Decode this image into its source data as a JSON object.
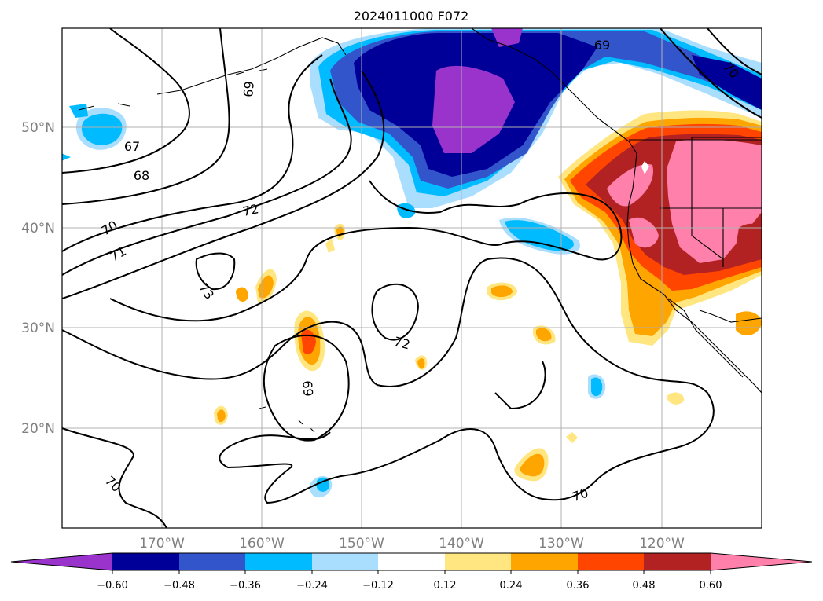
{
  "title": "2024011000 F072",
  "lat_labels": [
    "50°N",
    "40°N",
    "30°N",
    "20°N"
  ],
  "lon_labels": [
    "170°W",
    "160°W",
    "150°W",
    "140°W",
    "130°W",
    "120°W"
  ],
  "colorbar": {
    "ticks": [
      "−0.60",
      "−0.48",
      "−0.36",
      "−0.24",
      "−0.12",
      "0.12",
      "0.24",
      "0.36",
      "0.48",
      "0.60"
    ],
    "colors": [
      "#9933cc",
      "#000099",
      "#3355cc",
      "#00bbff",
      "#aadeff",
      "#ffffff",
      "#ffe680",
      "#ffa500",
      "#ff4500",
      "#b22222",
      "#ff80aa"
    ]
  },
  "contour_labels": [
    "67",
    "68",
    "69",
    "69",
    "69",
    "70",
    "70",
    "70",
    "70",
    "71",
    "72",
    "72",
    "73"
  ]
}
